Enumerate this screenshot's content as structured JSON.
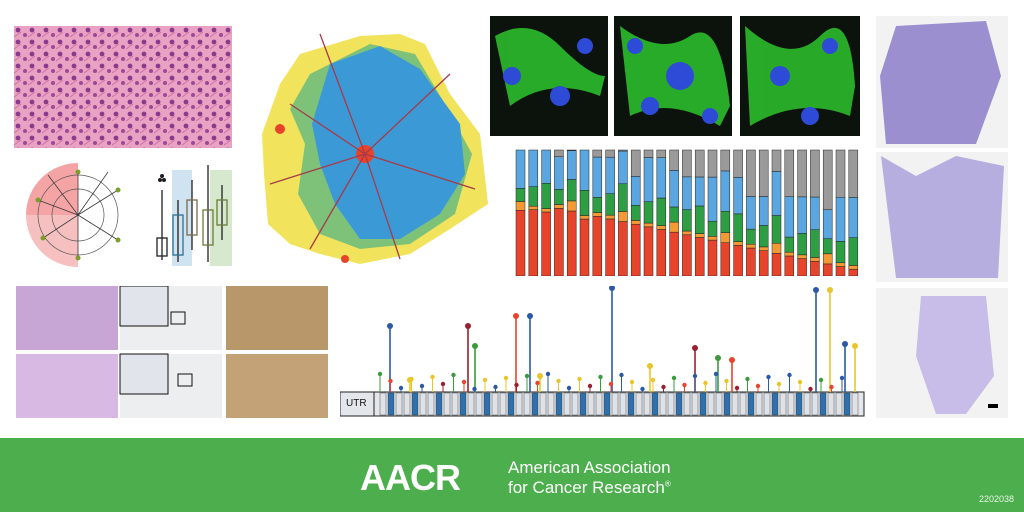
{
  "colors": {
    "banner_green": "#4cae4c",
    "he_pink": "#e58fb3",
    "fluor_green": "#2fd12f",
    "fluor_blue": "#2d4bd6",
    "bar_red": "#e8432b",
    "bar_orange": "#f39a35",
    "bar_green": "#2e9e45",
    "bar_blue": "#5aa6e0",
    "bar_gray": "#9a9a9a",
    "map_blue": "#3b9ad6",
    "map_yellow": "#f2e35c"
  },
  "brand": {
    "logo_text": "AACR",
    "org_line1": "American Association",
    "org_line2": "for Cancer Research",
    "registered_mark": "®",
    "code": "2202038"
  },
  "lollipop": {
    "utr_label": "UTR"
  },
  "panels": [
    {
      "name": "he-histology-image",
      "icon": "histology"
    },
    {
      "name": "density-heat-map",
      "icon": "map"
    },
    {
      "name": "immunofluorescence-images",
      "icon": "microscopy"
    },
    {
      "name": "lung-histology-images",
      "icon": "histology"
    },
    {
      "name": "phylogenetic-tree",
      "icon": "tree"
    },
    {
      "name": "boxplot-chart",
      "icon": "chart"
    },
    {
      "name": "stacked-bar-chart",
      "icon": "chart"
    },
    {
      "name": "ihc-tissue-grid",
      "icon": "histology"
    },
    {
      "name": "mutation-lollipop-plot",
      "icon": "chart"
    }
  ]
}
